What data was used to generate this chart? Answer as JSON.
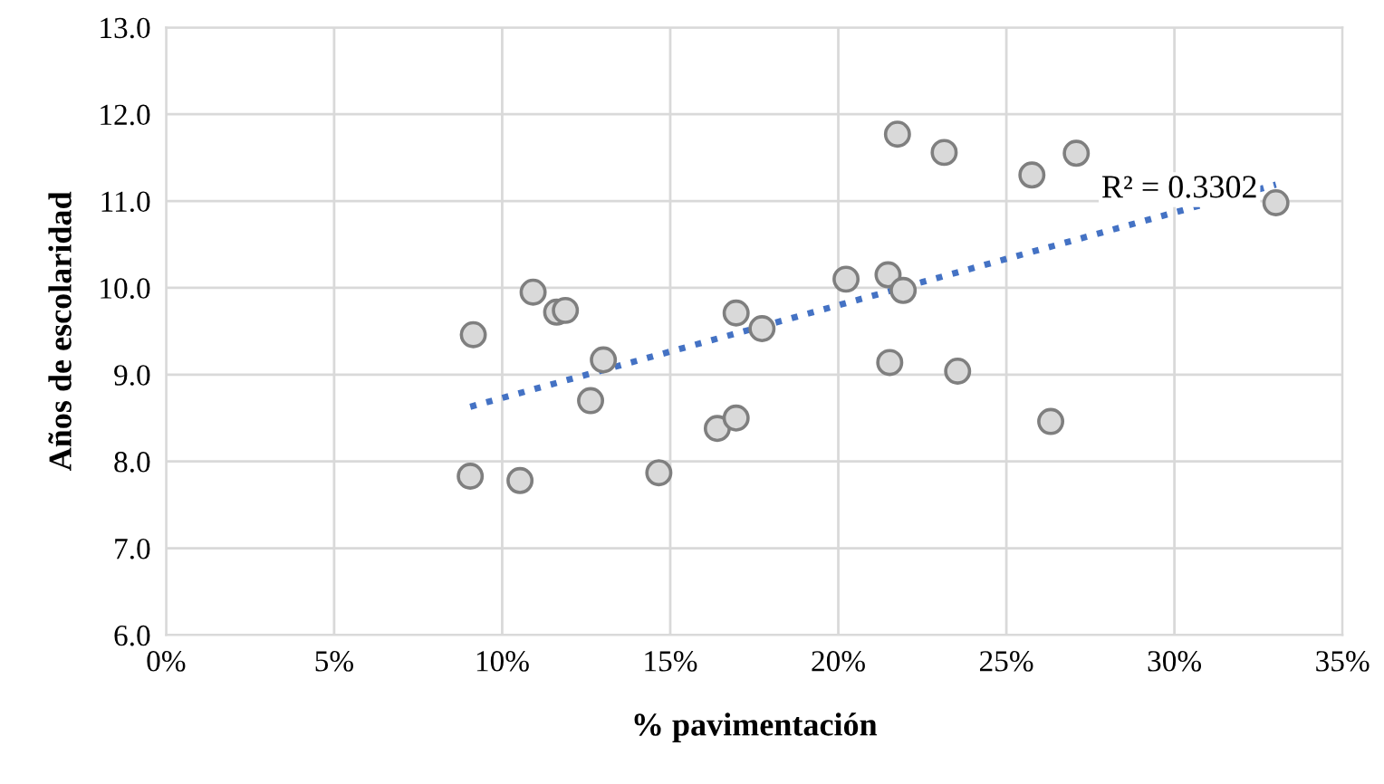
{
  "chart_data": {
    "type": "scatter",
    "xlabel": "% pavimentación",
    "ylabel": "Años de escolaridad",
    "xlim": [
      0,
      35
    ],
    "ylim": [
      6,
      13
    ],
    "xticks": [
      {
        "value": 0,
        "label": "0%"
      },
      {
        "value": 5,
        "label": "5%"
      },
      {
        "value": 10,
        "label": "10%"
      },
      {
        "value": 15,
        "label": "15%"
      },
      {
        "value": 20,
        "label": "20%"
      },
      {
        "value": 25,
        "label": "25%"
      },
      {
        "value": 30,
        "label": "30%"
      },
      {
        "value": 35,
        "label": "35%"
      }
    ],
    "yticks": [
      {
        "value": 6,
        "label": "6.0"
      },
      {
        "value": 7,
        "label": "7.0"
      },
      {
        "value": 8,
        "label": "8.0"
      },
      {
        "value": 9,
        "label": "9.0"
      },
      {
        "value": 10,
        "label": "10.0"
      },
      {
        "value": 11,
        "label": "11.0"
      },
      {
        "value": 12,
        "label": "12.0"
      },
      {
        "value": 13,
        "label": "13.0"
      }
    ],
    "grid": true,
    "marker": "circle",
    "annotations": [
      "R² = 0.3302"
    ],
    "series": [
      {
        "color": "#d9d9d9",
        "x": [
          9.14,
          9.05,
          10.53,
          10.92,
          11.62,
          11.88,
          13.01,
          12.63,
          14.66,
          16.4,
          16.96,
          16.96,
          17.73,
          20.23,
          21.48,
          21.93,
          21.76,
          23.15,
          21.53,
          23.55,
          25.76,
          27.08,
          26.32,
          33.02
        ],
        "values": [
          9.46,
          7.83,
          7.78,
          9.95,
          9.72,
          9.74,
          9.17,
          8.7,
          7.87,
          8.38,
          8.5,
          9.71,
          9.53,
          10.1,
          10.15,
          9.97,
          11.77,
          11.56,
          9.14,
          9.04,
          11.3,
          11.55,
          8.46,
          10.98
        ]
      },
      {
        "type": "line",
        "color": "#4472c4",
        "line_style": "dotted",
        "marker": "none",
        "x": [
          9.05,
          33.02
        ],
        "values": [
          8.63,
          11.19
        ]
      }
    ]
  }
}
